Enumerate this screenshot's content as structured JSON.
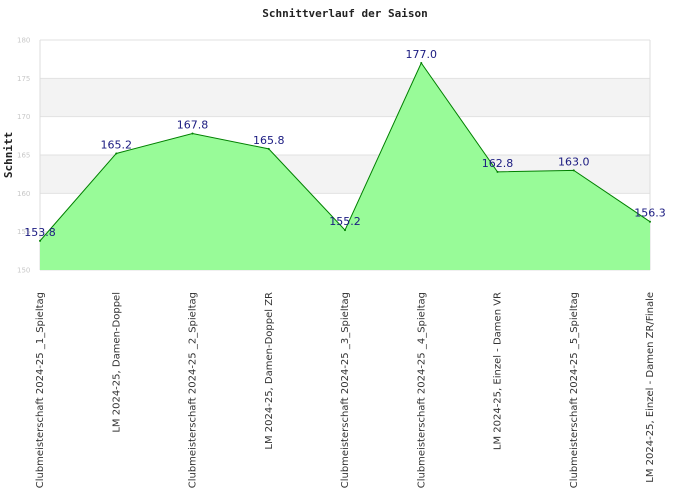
{
  "chart_data": {
    "type": "area",
    "title": "Schnittverlauf der Saison",
    "ylabel": "Schnitt",
    "xlabel": "",
    "ylim": [
      150,
      180
    ],
    "yticks": [
      150,
      155,
      160,
      165,
      170,
      175,
      180
    ],
    "grid": true,
    "categories": [
      "Clubmeisterschaft 2024-25 _1_Spieltag",
      "LM 2024-25, Damen-Doppel",
      "Clubmeisterschaft 2024-25 _2_Spieltag",
      "LM 2024-25, Damen-Doppel ZR",
      "Clubmeisterschaft 2024-25 _3_Spieltag",
      "Clubmeisterschaft 2024-25 _4_Spieltag",
      "LM 2024-25, Einzel - Damen VR",
      "Clubmeisterschaft 2024-25 _5_Spieltag",
      "LM 2024-25, Einzel - Damen ZR/Finale"
    ],
    "values": [
      153.8,
      165.2,
      167.8,
      165.8,
      155.2,
      177.0,
      162.8,
      163.0,
      156.3
    ],
    "value_labels": [
      "153.8",
      "165.2",
      "167.8",
      "165.8",
      "155.2",
      "177.0",
      "162.8",
      "163.0",
      "156.3"
    ],
    "colors": {
      "fill": "#98fb98",
      "line": "#008000",
      "band": "#f3f3f3",
      "data_label": "#1a1a80"
    }
  }
}
